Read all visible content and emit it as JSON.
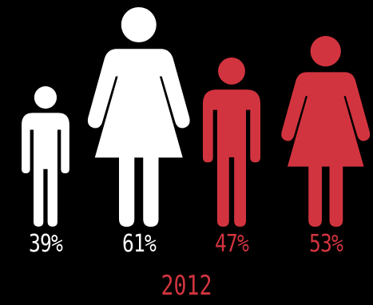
{
  "chart_data": {
    "type": "pictogram",
    "year": "2012",
    "items": [
      {
        "figure": "man-icon",
        "value": 39,
        "label": "39%",
        "color": "#ffffff"
      },
      {
        "figure": "woman-icon",
        "value": 61,
        "label": "61%",
        "color": "#ffffff"
      },
      {
        "figure": "man-icon",
        "value": 47,
        "label": "47%",
        "color": "#d2343f"
      },
      {
        "figure": "woman-icon",
        "value": 53,
        "label": "53%",
        "color": "#d2343f"
      }
    ]
  },
  "colors": {
    "background": "#000000",
    "white": "#ffffff",
    "accent": "#d2343f"
  }
}
